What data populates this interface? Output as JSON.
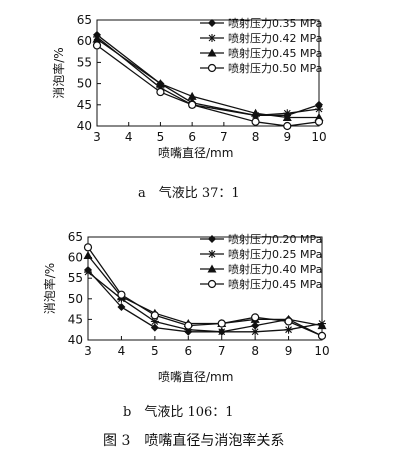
{
  "figure_caption": "图 3　喷嘴直径与消泡率关系",
  "chart_data": [
    {
      "type": "line",
      "caption": "a　气液比 37：1",
      "xlabel": "喷嘴直径/mm",
      "ylabel": "消泡率/%",
      "xlim": [
        3,
        10
      ],
      "ylim": [
        40,
        65
      ],
      "xticks": [
        3,
        4,
        5,
        6,
        7,
        8,
        9,
        10
      ],
      "yticks": [
        40,
        45,
        50,
        55,
        60,
        65
      ],
      "x": [
        3,
        5,
        6,
        8,
        9,
        10
      ],
      "legend_position": "top-right",
      "series": [
        {
          "name": "喷射压力0.35 MPa",
          "marker": "diamond",
          "values": [
            61.5,
            50,
            45.5,
            42.5,
            42.5,
            45
          ]
        },
        {
          "name": "喷射压力0.42 MPa",
          "marker": "star",
          "values": [
            61,
            49,
            45,
            42.5,
            43,
            44
          ]
        },
        {
          "name": "喷射压力0.45 MPa",
          "marker": "triangle",
          "values": [
            60.5,
            50,
            47,
            43,
            42,
            42
          ]
        },
        {
          "name": "喷射压力0.50 MPa",
          "marker": "circle",
          "values": [
            59,
            48,
            45,
            41,
            40,
            41
          ]
        }
      ]
    },
    {
      "type": "line",
      "caption": "b　气液比 106：1",
      "xlabel": "喷嘴直径/mm",
      "ylabel": "消泡率/%",
      "xlim": [
        3,
        10
      ],
      "ylim": [
        40,
        65
      ],
      "xticks": [
        3,
        4,
        5,
        6,
        7,
        8,
        9,
        10
      ],
      "yticks": [
        40,
        45,
        50,
        55,
        60,
        65
      ],
      "x": [
        3,
        4,
        5,
        6,
        7,
        8,
        9,
        10
      ],
      "legend_position": "top-right",
      "series": [
        {
          "name": "喷射压力0.20 MPa",
          "marker": "diamond",
          "values": [
            57,
            48,
            43,
            42,
            42,
            43.5,
            45,
            41
          ]
        },
        {
          "name": "喷射压力0.25 MPa",
          "marker": "star",
          "values": [
            56.5,
            50,
            44.5,
            42.5,
            42,
            42,
            42.5,
            44
          ]
        },
        {
          "name": "喷射压力0.40 MPa",
          "marker": "triangle",
          "values": [
            60.5,
            50.5,
            46.5,
            44,
            44,
            45,
            45,
            43.5
          ]
        },
        {
          "name": "喷射压力0.45 MPa",
          "marker": "circle",
          "values": [
            62.5,
            51,
            46,
            43.5,
            44,
            45.5,
            44.5,
            41
          ]
        }
      ]
    }
  ]
}
